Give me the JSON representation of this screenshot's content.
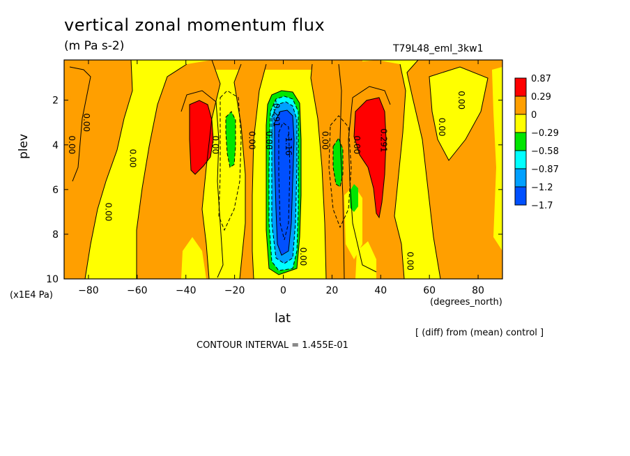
{
  "title": "vertical zonal momentum flux",
  "units": "(m Pa s-2)",
  "run_label": "T79L48_eml_3kw1",
  "footer": {
    "diff_note": "[ (diff) from (mean) control ]",
    "contour_interval": "CONTOUR INTERVAL = 1.455E-01"
  },
  "chart_data": {
    "type": "heatmap",
    "title": "vertical zonal momentum flux",
    "subtitle": "(m Pa s-2)",
    "xlabel": "lat",
    "x_unit": "(degrees_north)",
    "ylabel": "plev",
    "y_unit": "(x1E4 Pa)",
    "xlim": [
      -90,
      90
    ],
    "ylim": [
      10,
      0.2
    ],
    "x_ticks": [
      -80,
      -60,
      -40,
      -20,
      0,
      20,
      40,
      60,
      80
    ],
    "y_ticks": [
      2,
      4,
      6,
      8,
      10
    ],
    "colorbar": {
      "labels": [
        "0.87",
        "0.29",
        "0",
        "-0.29",
        "-0.58",
        "-0.87",
        "-1.2",
        "-1.7"
      ],
      "colors": [
        "#ff0000",
        "#ff9f00",
        "#ffff00",
        "#00e600",
        "#00ffff",
        "#00a0ff",
        "#0050ff"
      ]
    },
    "contour_labels": [
      {
        "text": "0.00",
        "lat": -88,
        "plev": 4.0
      },
      {
        "text": "0.00",
        "lat": -82,
        "plev": 3.0
      },
      {
        "text": "0.00",
        "lat": -63,
        "plev": 4.6
      },
      {
        "text": "0.00",
        "lat": -73,
        "plev": 7.0
      },
      {
        "text": "0.00",
        "lat": -29,
        "plev": 4.0
      },
      {
        "text": "0.00",
        "lat": -14,
        "plev": 3.8
      },
      {
        "text": "0.00",
        "lat": -7,
        "plev": 3.8
      },
      {
        "text": "-0.291",
        "lat": -4,
        "plev": 2.6
      },
      {
        "text": "-1.16",
        "lat": 1,
        "plev": 4.0
      },
      {
        "text": "0.00",
        "lat": 16,
        "plev": 3.8
      },
      {
        "text": "0.00",
        "lat": 29,
        "plev": 4.0
      },
      {
        "text": "0.291",
        "lat": 40,
        "plev": 3.8
      },
      {
        "text": "0.00",
        "lat": 72,
        "plev": 2.0
      },
      {
        "text": "0.00",
        "lat": 64,
        "plev": 3.2
      },
      {
        "text": "0.00",
        "lat": 7,
        "plev": 9.0
      },
      {
        "text": "0.00",
        "lat": 51,
        "plev": 9.2
      }
    ]
  }
}
